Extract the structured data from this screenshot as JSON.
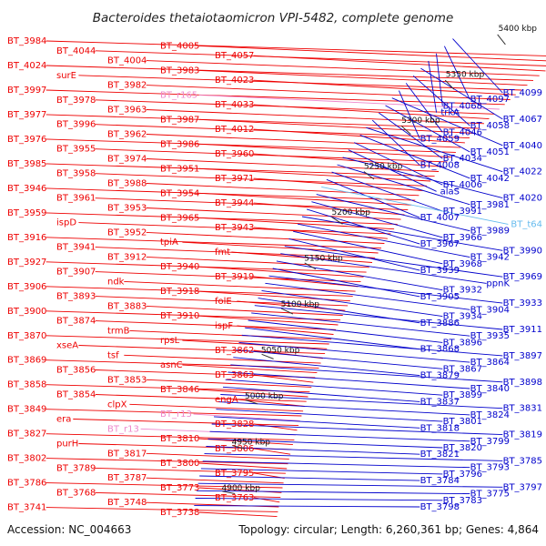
{
  "title": "Bacteroides thetaiotaomicron VPI-5482, complete genome",
  "footer": {
    "accession": "Accession: NC_004663",
    "summary": "Topology: circular; Length: 6,260,361 bp; Genes: 4,864"
  },
  "colors": {
    "left_strand": "#ee0000",
    "right_strand": "#0000cc",
    "rna": "#ee88cc",
    "trna": "#66bbee",
    "backbone": "#888888",
    "cog_ring": "#118811"
  },
  "kbp_marks": [
    "5400 kbp",
    "5350 kbp",
    "5300 kbp",
    "5250 kbp",
    "5200 kbp",
    "5150 kbp",
    "5100 kbp",
    "5050 kbp",
    "5000 kbp",
    "4950 kbp",
    "4900 kbp"
  ],
  "left_labels": [
    {
      "text": "BT_3984",
      "kind": "gene"
    },
    {
      "text": "BT_4005",
      "kind": "gene"
    },
    {
      "text": "BT_4044",
      "kind": "gene"
    },
    {
      "text": "BT_4057",
      "kind": "gene"
    },
    {
      "text": "BT_4004",
      "kind": "gene"
    },
    {
      "text": "BT_4024",
      "kind": "gene"
    },
    {
      "text": "BT_3983",
      "kind": "gene"
    },
    {
      "text": "surE",
      "kind": "gene"
    },
    {
      "text": "BT_4023",
      "kind": "gene"
    },
    {
      "text": "BT_3982",
      "kind": "gene"
    },
    {
      "text": "BT_3997",
      "kind": "gene"
    },
    {
      "text": "BT_r165",
      "kind": "rna"
    },
    {
      "text": "BT_3978",
      "kind": "gene"
    },
    {
      "text": "BT_4033",
      "kind": "gene"
    },
    {
      "text": "BT_3963",
      "kind": "gene"
    },
    {
      "text": "BT_3977",
      "kind": "gene"
    },
    {
      "text": "BT_3987",
      "kind": "gene"
    },
    {
      "text": "BT_3996",
      "kind": "gene"
    },
    {
      "text": "BT_4012",
      "kind": "gene"
    },
    {
      "text": "BT_3962",
      "kind": "gene"
    },
    {
      "text": "BT_3976",
      "kind": "gene"
    },
    {
      "text": "BT_3986",
      "kind": "gene"
    },
    {
      "text": "BT_3955",
      "kind": "gene"
    },
    {
      "text": "BT_3960",
      "kind": "gene"
    },
    {
      "text": "BT_3974",
      "kind": "gene"
    },
    {
      "text": "BT_3985",
      "kind": "gene"
    },
    {
      "text": "BT_3951",
      "kind": "gene"
    },
    {
      "text": "BT_3958",
      "kind": "gene"
    },
    {
      "text": "BT_3971",
      "kind": "gene"
    },
    {
      "text": "BT_3988",
      "kind": "gene"
    },
    {
      "text": "BT_3946",
      "kind": "gene"
    },
    {
      "text": "BT_3954",
      "kind": "gene"
    },
    {
      "text": "BT_3961",
      "kind": "gene"
    },
    {
      "text": "BT_3944",
      "kind": "gene"
    },
    {
      "text": "BT_3953",
      "kind": "gene"
    },
    {
      "text": "BT_3959",
      "kind": "gene"
    },
    {
      "text": "BT_3965",
      "kind": "gene"
    },
    {
      "text": "ispD",
      "kind": "gene"
    },
    {
      "text": "BT_3943",
      "kind": "gene"
    },
    {
      "text": "BT_3952",
      "kind": "gene"
    },
    {
      "text": "BT_3916",
      "kind": "gene"
    },
    {
      "text": "tpiA",
      "kind": "gene"
    },
    {
      "text": "BT_3941",
      "kind": "gene"
    },
    {
      "text": "fmt",
      "kind": "gene"
    },
    {
      "text": "BT_3912",
      "kind": "gene"
    },
    {
      "text": "BT_3927",
      "kind": "gene"
    },
    {
      "text": "BT_3940",
      "kind": "gene"
    },
    {
      "text": "BT_3907",
      "kind": "gene"
    },
    {
      "text": "BT_3919",
      "kind": "gene"
    },
    {
      "text": "ndk",
      "kind": "gene"
    },
    {
      "text": "BT_3906",
      "kind": "gene"
    },
    {
      "text": "BT_3918",
      "kind": "gene"
    },
    {
      "text": "BT_3893",
      "kind": "gene"
    },
    {
      "text": "folE",
      "kind": "gene"
    },
    {
      "text": "BT_3883",
      "kind": "gene"
    },
    {
      "text": "BT_3900",
      "kind": "gene"
    },
    {
      "text": "BT_3910",
      "kind": "gene"
    },
    {
      "text": "BT_3874",
      "kind": "gene"
    },
    {
      "text": "ispF",
      "kind": "gene"
    },
    {
      "text": "trmB",
      "kind": "gene"
    },
    {
      "text": "BT_3870",
      "kind": "gene"
    },
    {
      "text": "rpsL",
      "kind": "gene"
    },
    {
      "text": "xseA",
      "kind": "gene"
    },
    {
      "text": "BT_3862",
      "kind": "gene"
    },
    {
      "text": "tsf",
      "kind": "gene"
    },
    {
      "text": "BT_3869",
      "kind": "gene"
    },
    {
      "text": "asnC",
      "kind": "gene"
    },
    {
      "text": "BT_3856",
      "kind": "gene"
    },
    {
      "text": "BT_3863",
      "kind": "gene"
    },
    {
      "text": "BT_3853",
      "kind": "gene"
    },
    {
      "text": "BT_3858",
      "kind": "gene"
    },
    {
      "text": "BT_3846",
      "kind": "gene"
    },
    {
      "text": "BT_3854",
      "kind": "gene"
    },
    {
      "text": "engA",
      "kind": "gene"
    },
    {
      "text": "clpX",
      "kind": "gene"
    },
    {
      "text": "BT_3849",
      "kind": "gene"
    },
    {
      "text": "BT_r13",
      "kind": "rna"
    },
    {
      "text": "era",
      "kind": "gene"
    },
    {
      "text": "BT_3828",
      "kind": "gene"
    },
    {
      "text": "BT_r13",
      "kind": "rna"
    },
    {
      "text": "BT_3827",
      "kind": "gene"
    },
    {
      "text": "BT_3810",
      "kind": "gene"
    },
    {
      "text": "purH",
      "kind": "gene"
    },
    {
      "text": "BT_3806",
      "kind": "gene"
    },
    {
      "text": "BT_3817",
      "kind": "gene"
    },
    {
      "text": "BT_3802",
      "kind": "gene"
    },
    {
      "text": "BT_3800",
      "kind": "gene"
    },
    {
      "text": "BT_3789",
      "kind": "gene"
    },
    {
      "text": "BT_3795",
      "kind": "gene"
    },
    {
      "text": "BT_3787",
      "kind": "gene"
    },
    {
      "text": "BT_3786",
      "kind": "gene"
    },
    {
      "text": "BT_3773",
      "kind": "gene"
    },
    {
      "text": "BT_3768",
      "kind": "gene"
    },
    {
      "text": "BT_3763",
      "kind": "gene"
    },
    {
      "text": "BT_3748",
      "kind": "gene"
    },
    {
      "text": "BT_3741",
      "kind": "gene"
    },
    {
      "text": "BT_3738",
      "kind": "gene"
    }
  ],
  "right_labels": [
    {
      "text": "BT_4099",
      "kind": "gene"
    },
    {
      "text": "BT_4097",
      "kind": "gene"
    },
    {
      "text": "BT_4068",
      "kind": "gene"
    },
    {
      "text": "trkA",
      "kind": "gene"
    },
    {
      "text": "BT_4067",
      "kind": "gene"
    },
    {
      "text": "BT_4058",
      "kind": "gene"
    },
    {
      "text": "BT_4046",
      "kind": "gene"
    },
    {
      "text": "BT_4059",
      "kind": "gene"
    },
    {
      "text": "BT_4040",
      "kind": "gene"
    },
    {
      "text": "BT_4051",
      "kind": "gene"
    },
    {
      "text": "BT_4034",
      "kind": "gene"
    },
    {
      "text": "BT_4008",
      "kind": "gene"
    },
    {
      "text": "BT_4022",
      "kind": "gene"
    },
    {
      "text": "BT_4042",
      "kind": "gene"
    },
    {
      "text": "BT_4006",
      "kind": "gene"
    },
    {
      "text": "alaS",
      "kind": "gene"
    },
    {
      "text": "BT_4020",
      "kind": "gene"
    },
    {
      "text": "BT_3981",
      "kind": "gene"
    },
    {
      "text": "BT_3991",
      "kind": "gene"
    },
    {
      "text": "BT_4007",
      "kind": "gene"
    },
    {
      "text": "BT_t64",
      "kind": "trna"
    },
    {
      "text": "BT_3989",
      "kind": "gene"
    },
    {
      "text": "BT_3966",
      "kind": "gene"
    },
    {
      "text": "BT_3967",
      "kind": "gene"
    },
    {
      "text": "BT_3990",
      "kind": "gene"
    },
    {
      "text": "BT_3942",
      "kind": "gene"
    },
    {
      "text": "BT_3968",
      "kind": "gene"
    },
    {
      "text": "BT_3939",
      "kind": "gene"
    },
    {
      "text": "BT_3969",
      "kind": "gene"
    },
    {
      "text": "ppnK",
      "kind": "gene"
    },
    {
      "text": "BT_3932",
      "kind": "gene"
    },
    {
      "text": "BT_3905",
      "kind": "gene"
    },
    {
      "text": "BT_3933",
      "kind": "gene"
    },
    {
      "text": "BT_3904",
      "kind": "gene"
    },
    {
      "text": "BT_3934",
      "kind": "gene"
    },
    {
      "text": "BT_3886",
      "kind": "gene"
    },
    {
      "text": "BT_3911",
      "kind": "gene"
    },
    {
      "text": "BT_3935",
      "kind": "gene"
    },
    {
      "text": "BT_3896",
      "kind": "gene"
    },
    {
      "text": "BT_3868",
      "kind": "gene"
    },
    {
      "text": "BT_3897",
      "kind": "gene"
    },
    {
      "text": "BT_3864",
      "kind": "gene"
    },
    {
      "text": "BT_3867",
      "kind": "gene"
    },
    {
      "text": "BT_3879",
      "kind": "gene"
    },
    {
      "text": "BT_3898",
      "kind": "gene"
    },
    {
      "text": "BT_3840",
      "kind": "gene"
    },
    {
      "text": "BT_3899",
      "kind": "gene"
    },
    {
      "text": "BT_3837",
      "kind": "gene"
    },
    {
      "text": "BT_3831",
      "kind": "gene"
    },
    {
      "text": "BT_3824",
      "kind": "gene"
    },
    {
      "text": "BT_3801",
      "kind": "gene"
    },
    {
      "text": "BT_3818",
      "kind": "gene"
    },
    {
      "text": "BT_3819",
      "kind": "gene"
    },
    {
      "text": "BT_3799",
      "kind": "gene"
    },
    {
      "text": "BT_3820",
      "kind": "gene"
    },
    {
      "text": "BT_3821",
      "kind": "gene"
    },
    {
      "text": "BT_3785",
      "kind": "gene"
    },
    {
      "text": "BT_3793",
      "kind": "gene"
    },
    {
      "text": "BT_3796",
      "kind": "gene"
    },
    {
      "text": "BT_3784",
      "kind": "gene"
    },
    {
      "text": "BT_3797",
      "kind": "gene"
    },
    {
      "text": "BT_3775",
      "kind": "gene"
    },
    {
      "text": "BT_3783",
      "kind": "gene"
    },
    {
      "text": "BT_3798",
      "kind": "gene"
    }
  ]
}
